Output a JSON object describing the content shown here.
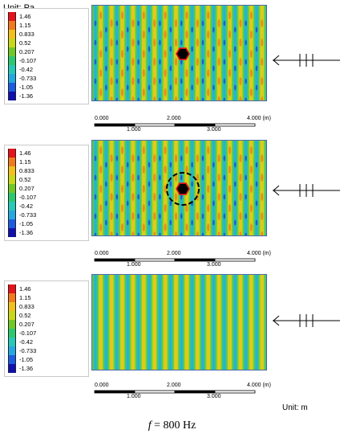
{
  "unit_label": "Unit: Pa",
  "bottom_unit_label": "Unit: m",
  "frequency_label_f": "f",
  "frequency_label_rest": " = 800 Hz",
  "legend": {
    "values": [
      "1.46",
      "1.15",
      "0.833",
      "0.52",
      "0.207",
      "-0.107",
      "-0.42",
      "-0.733",
      "-1.05",
      "-1.36"
    ],
    "colors": [
      "#e8121a",
      "#f27a1c",
      "#f2c01c",
      "#c8d818",
      "#70c828",
      "#2cc870",
      "#28c8b8",
      "#24a8e0",
      "#1c5ce0",
      "#1010b0"
    ]
  },
  "scale": {
    "top_labels": [
      "0.000",
      "2.000",
      "4.000 (m)"
    ],
    "bottom_labels": [
      "1.000",
      "3.000"
    ]
  },
  "panels": [
    {
      "scatterer": "hexagon",
      "highlight_ring": false
    },
    {
      "scatterer": "hexagon",
      "highlight_ring": true
    },
    {
      "scatterer": "none",
      "highlight_ring": false
    }
  ]
}
